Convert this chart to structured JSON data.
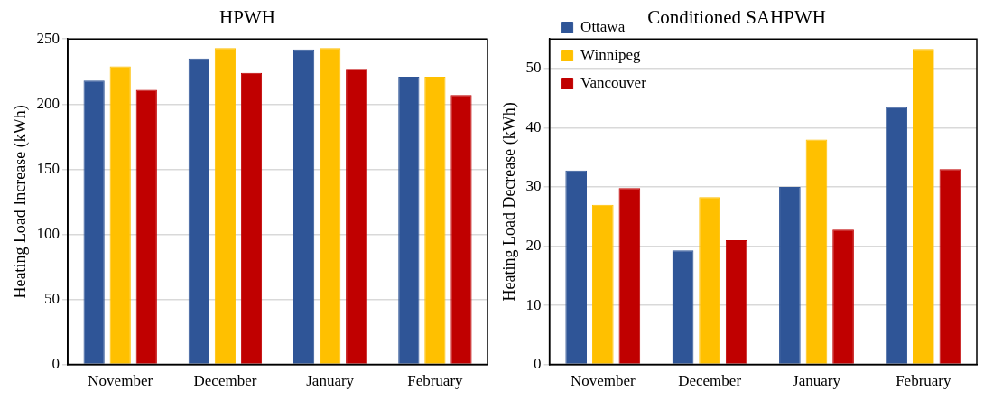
{
  "chart_data": [
    {
      "type": "bar",
      "title": "HPWH",
      "ylabel": "Heating Load Increase (kWh)",
      "categories": [
        "November",
        "December",
        "January",
        "February"
      ],
      "series": [
        {
          "color": "#2f5597",
          "values": [
            218,
            235,
            242,
            221
          ]
        },
        {
          "color": "#ffc000",
          "values": [
            229,
            243,
            243,
            221
          ]
        },
        {
          "color": "#c00000",
          "values": [
            211,
            224,
            227,
            207
          ]
        }
      ],
      "ylim": [
        0,
        250
      ],
      "yticks": [
        0,
        50,
        100,
        150,
        200,
        250
      ],
      "grid": "y",
      "legend": false
    },
    {
      "type": "bar",
      "title": "Conditioned SAHPWH",
      "ylabel": "Heating Load Decrease (kWh)",
      "categories": [
        "November",
        "December",
        "January",
        "February"
      ],
      "series": [
        {
          "name": "Ottawa",
          "color": "#2f5597",
          "values": [
            32.8,
            19.3,
            30,
            43.5
          ]
        },
        {
          "name": "Winnipeg",
          "color": "#ffc000",
          "values": [
            27,
            28.3,
            38,
            53.3
          ]
        },
        {
          "name": "Vancouver",
          "color": "#c00000",
          "values": [
            29.8,
            21,
            22.8,
            33
          ]
        }
      ],
      "ylim": [
        0,
        55
      ],
      "yticks": [
        0,
        10,
        20,
        30,
        40,
        50
      ],
      "grid": "y",
      "legend": "top left"
    }
  ]
}
